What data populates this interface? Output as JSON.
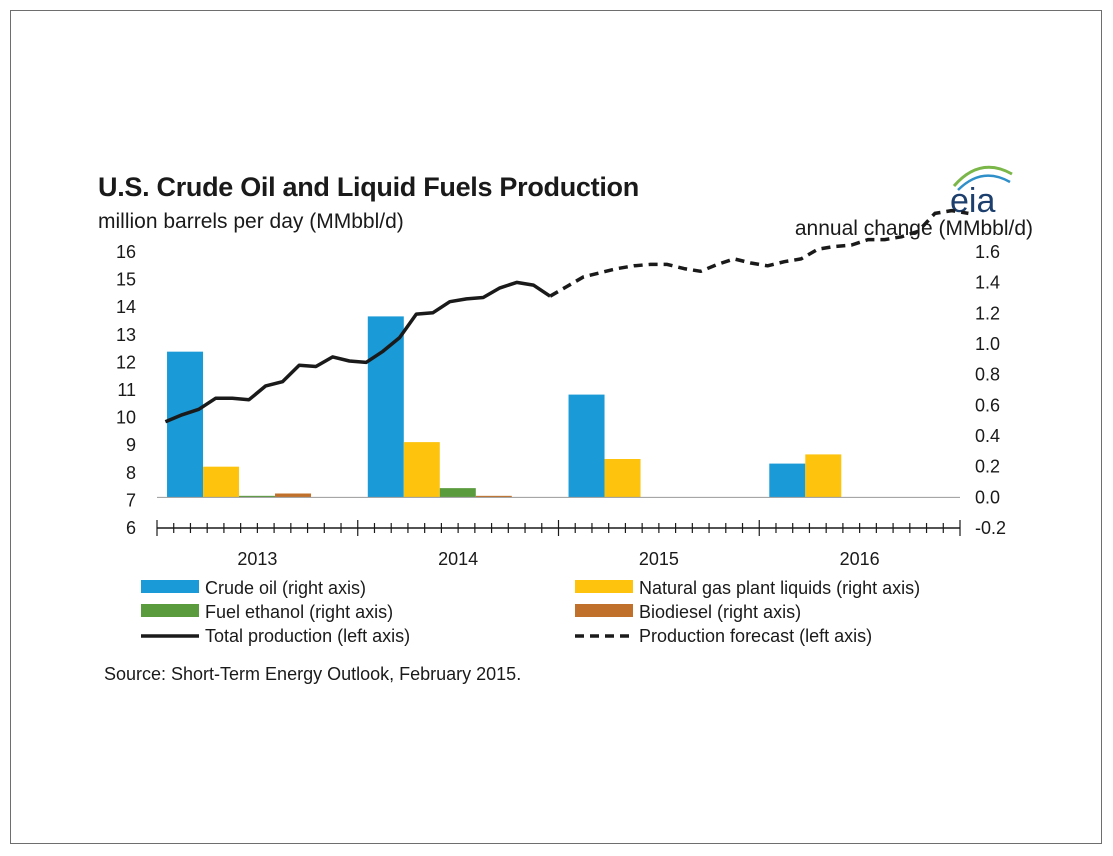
{
  "chart_data": {
    "type": "bar",
    "title": "U.S. Crude Oil and Liquid Fuels Production",
    "ylabel_left": "million barrels per day (MMbbl/d)",
    "ylabel_right": "annual change (MMbbl/d)",
    "categories": [
      "2013",
      "2014",
      "2015",
      "2016"
    ],
    "left_axis": {
      "min": 6,
      "max": 16,
      "ticks": [
        "6",
        "7",
        "8",
        "9",
        "10",
        "11",
        "12",
        "13",
        "14",
        "15",
        "16"
      ]
    },
    "right_axis": {
      "min": -0.2,
      "max": 1.6,
      "ticks": [
        "-0.2",
        "0.0",
        "0.2",
        "0.4",
        "0.6",
        "0.8",
        "1.0",
        "1.2",
        "1.4",
        "1.6"
      ]
    },
    "bar_series": [
      {
        "name": "Crude oil (right axis)",
        "color": "#1a9ad6",
        "values": [
          0.95,
          1.18,
          0.67,
          0.22
        ]
      },
      {
        "name": "Natural gas plant liquids (right axis)",
        "color": "#fdc30d",
        "values": [
          0.2,
          0.36,
          0.25,
          0.28
        ]
      },
      {
        "name": "Fuel ethanol (right axis)",
        "color": "#5a9b3e",
        "values": [
          0.005,
          0.06,
          0.0,
          0.0
        ]
      },
      {
        "name": "Biodiesel (right axis)",
        "color": "#c0702a",
        "values": [
          0.025,
          0.005,
          0.0,
          0.0
        ]
      }
    ],
    "line_series": [
      {
        "name": "Total production (left axis)",
        "color": "#1a1a1a",
        "style": "solid",
        "axis": "left",
        "x_start": 0.5,
        "values": [
          9.85,
          10.1,
          10.3,
          10.7,
          10.7,
          10.65,
          11.15,
          11.3,
          11.9,
          11.85,
          12.2,
          12.05,
          12.0,
          12.4,
          12.9,
          13.75,
          13.8,
          14.2,
          14.3,
          14.35,
          14.7,
          14.9,
          14.8,
          14.4
        ]
      },
      {
        "name": "Production forecast (left axis)",
        "color": "#1a1a1a",
        "style": "dashed",
        "axis": "left",
        "x_start": 23.5,
        "values": [
          14.4,
          14.75,
          15.1,
          15.25,
          15.4,
          15.5,
          15.55,
          15.55,
          15.4,
          15.3,
          15.55,
          15.75,
          15.6,
          15.5,
          15.65,
          15.75,
          16.1,
          16.2,
          16.25,
          16.45,
          16.45,
          16.55,
          16.75,
          17.4,
          17.5,
          17.4
        ]
      }
    ],
    "legend": [
      {
        "label": "Crude oil (right axis)",
        "kind": "bar",
        "color": "#1a9ad6"
      },
      {
        "label": "Natural gas plant liquids (right axis)",
        "kind": "bar",
        "color": "#fdc30d"
      },
      {
        "label": "Fuel ethanol (right axis)",
        "kind": "bar",
        "color": "#5a9b3e"
      },
      {
        "label": "Biodiesel (right axis)",
        "kind": "bar",
        "color": "#c0702a"
      },
      {
        "label": "Total production (left axis)",
        "kind": "line",
        "color": "#1a1a1a"
      },
      {
        "label": "Production forecast (left axis)",
        "kind": "dash",
        "color": "#1a1a1a"
      }
    ],
    "legend_position": "bottom",
    "grid": false,
    "source": "Source: Short-Term Energy Outlook, February 2015."
  },
  "logo": {
    "text": "eia",
    "color": "#1c3f6e",
    "accent": "#7ab648",
    "accent2": "#2f8fc9"
  }
}
